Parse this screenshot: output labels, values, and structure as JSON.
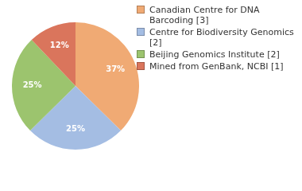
{
  "chart_data": {
    "type": "pie",
    "categories": [
      "Canadian Centre for DNA Barcoding [3]",
      "Centre for Biodiversity Genomics [2]",
      "Beijing Genomics Institute [2]",
      "Mined from GenBank, NCBI [1]"
    ],
    "values": [
      37,
      25,
      25,
      12
    ],
    "value_labels": [
      "37%",
      "25%",
      "25%",
      "12%"
    ],
    "colors": [
      "#f0aa74",
      "#a4bde3",
      "#9cc46e",
      "#da755c"
    ],
    "legend": "right",
    "data_labels": true
  }
}
